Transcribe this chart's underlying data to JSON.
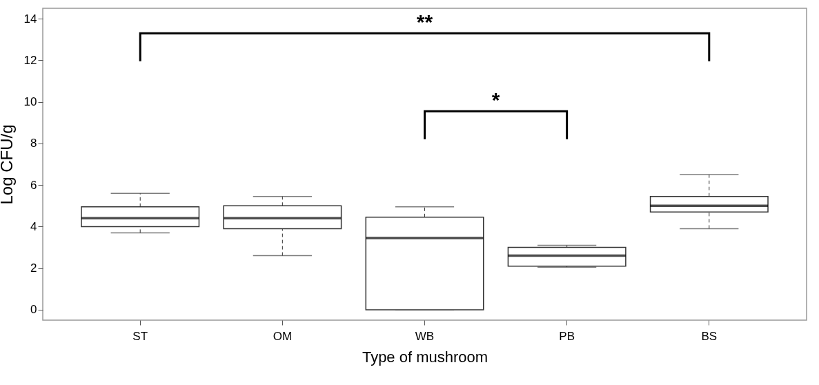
{
  "chart_data": {
    "type": "box",
    "xlabel": "Type of mushroom",
    "ylabel": "Log CFU/g",
    "categories": [
      "ST",
      "OM",
      "WB",
      "PB",
      "BS"
    ],
    "boxes": [
      {
        "low": 3.7,
        "q1": 4.0,
        "median": 4.4,
        "q3": 4.95,
        "high": 5.6
      },
      {
        "low": 2.6,
        "q1": 3.9,
        "median": 4.4,
        "q3": 5.0,
        "high": 5.45
      },
      {
        "low": 0,
        "q1": 0,
        "median": 3.45,
        "q3": 4.45,
        "high": 4.95
      },
      {
        "low": 2.05,
        "q1": 2.1,
        "median": 2.6,
        "q3": 3.0,
        "high": 3.1
      },
      {
        "low": 3.9,
        "q1": 4.7,
        "median": 5.0,
        "q3": 5.45,
        "high": 6.5
      }
    ],
    "ylim": [
      -0.5,
      14.5
    ],
    "yticks": [
      0,
      2,
      4,
      6,
      8,
      10,
      12,
      14
    ],
    "grid": false,
    "annotations": [
      "**",
      "*"
    ]
  }
}
